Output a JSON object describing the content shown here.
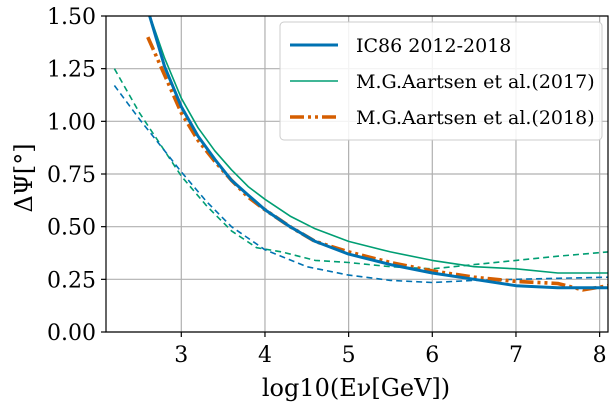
{
  "chart_data": {
    "type": "line",
    "xlabel": "log10(Eν[GeV])",
    "ylabel": "ΔΨ[°]",
    "xlim": [
      2.1,
      8.1
    ],
    "ylim": [
      0.0,
      1.5
    ],
    "xticks": [
      "3",
      "4",
      "5",
      "6",
      "7",
      "8"
    ],
    "yticks": [
      "0.00",
      "0.25",
      "0.50",
      "0.75",
      "1.00",
      "1.25",
      "1.50"
    ],
    "grid": true,
    "legend_position": "top-right",
    "legend": [
      {
        "label": "IC86 2012-2018",
        "color": "#0072b2",
        "style": "solid-thick"
      },
      {
        "label": "M.G.Aartsen et al.(2017)",
        "color": "#009e73",
        "style": "solid-thin"
      },
      {
        "label": "M.G.Aartsen et al.(2018)",
        "color": "#d55e00",
        "style": "dashdot-thick"
      }
    ],
    "series": [
      {
        "name": "IC86 2012-2018",
        "color": "#0072b2",
        "style": "solid-thick",
        "x": [
          2.6,
          2.8,
          3.0,
          3.2,
          3.4,
          3.6,
          3.8,
          4.0,
          4.3,
          4.6,
          5.0,
          5.5,
          6.0,
          6.5,
          7.0,
          7.5,
          8.0,
          8.1
        ],
        "y": [
          1.53,
          1.26,
          1.07,
          0.93,
          0.82,
          0.72,
          0.65,
          0.58,
          0.5,
          0.43,
          0.37,
          0.32,
          0.28,
          0.25,
          0.22,
          0.21,
          0.21,
          0.21
        ]
      },
      {
        "name": "M.G.Aartsen et al.(2017)",
        "color": "#009e73",
        "style": "solid-thin",
        "x": [
          2.6,
          2.8,
          3.0,
          3.2,
          3.4,
          3.6,
          3.8,
          4.0,
          4.3,
          4.6,
          5.0,
          5.5,
          6.0,
          6.5,
          7.0,
          7.5,
          8.0,
          8.1
        ],
        "y": [
          1.53,
          1.3,
          1.11,
          0.97,
          0.86,
          0.77,
          0.69,
          0.63,
          0.55,
          0.49,
          0.43,
          0.38,
          0.34,
          0.31,
          0.3,
          0.28,
          0.28,
          0.28
        ]
      },
      {
        "name": "M.G.Aartsen et al.(2018)",
        "color": "#d55e00",
        "style": "dashdot-thick",
        "x": [
          2.6,
          2.8,
          3.0,
          3.2,
          3.4,
          3.6,
          3.8,
          4.0,
          4.3,
          4.6,
          5.0,
          5.5,
          6.0,
          6.5,
          7.0,
          7.5,
          7.8,
          8.1
        ],
        "y": [
          1.4,
          1.22,
          1.04,
          0.91,
          0.81,
          0.72,
          0.64,
          0.58,
          0.5,
          0.43,
          0.38,
          0.33,
          0.29,
          0.26,
          0.24,
          0.23,
          0.2,
          0.22
        ]
      },
      {
        "color": "#0072b2",
        "style": "dashed-thin",
        "x": [
          2.2,
          2.5,
          2.8,
          3.0,
          3.3,
          3.6,
          4.0,
          4.5,
          5.0,
          5.5,
          6.0,
          6.5,
          7.0,
          7.5,
          8.1
        ],
        "y": [
          1.17,
          1.01,
          0.86,
          0.76,
          0.62,
          0.5,
          0.39,
          0.31,
          0.27,
          0.245,
          0.235,
          0.245,
          0.25,
          0.255,
          0.26
        ]
      },
      {
        "color": "#009e73",
        "style": "dashed-thin",
        "x": [
          2.2,
          2.5,
          2.8,
          3.0,
          3.3,
          3.6,
          3.9,
          4.2,
          4.6,
          5.0,
          5.5,
          6.0,
          6.5,
          7.0,
          7.5,
          8.1
        ],
        "y": [
          1.25,
          1.04,
          0.86,
          0.74,
          0.6,
          0.48,
          0.4,
          0.38,
          0.34,
          0.33,
          0.31,
          0.3,
          0.32,
          0.34,
          0.36,
          0.38
        ]
      }
    ]
  }
}
